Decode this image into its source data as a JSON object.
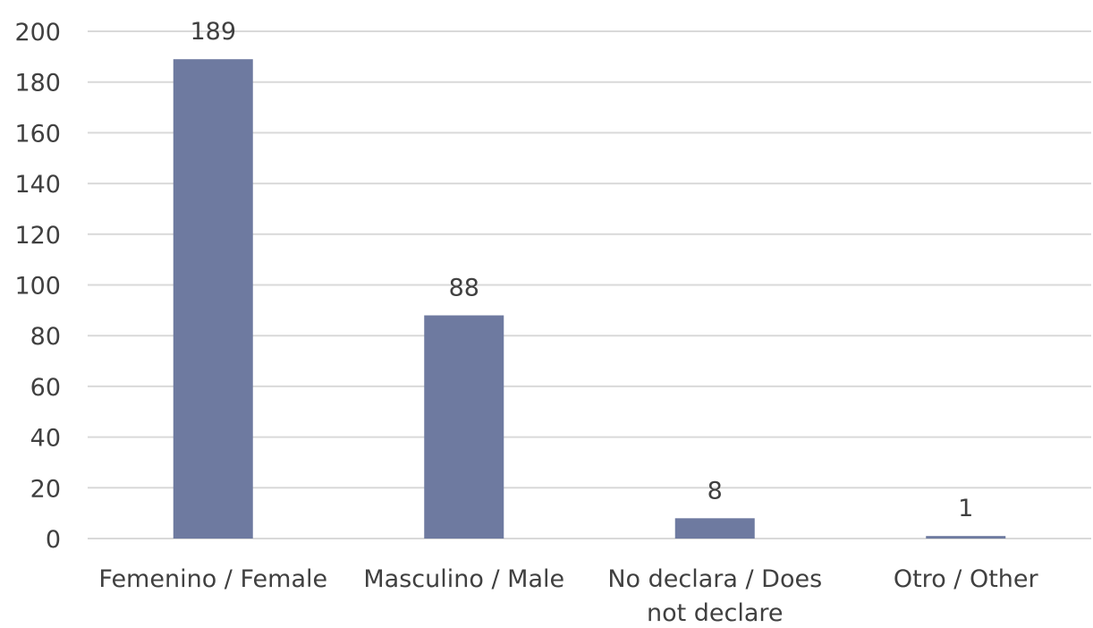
{
  "chart_data": {
    "type": "bar",
    "categories": [
      "Femenino / Female",
      "Masculino / Male",
      "No declara / Does not declare",
      "Otro / Other"
    ],
    "category_label_lines": [
      [
        "Femenino / Female"
      ],
      [
        "Masculino / Male"
      ],
      [
        "No declara / Does",
        "not declare"
      ],
      [
        "Otro / Other"
      ]
    ],
    "values": [
      189,
      88,
      8,
      1
    ],
    "data_labels": [
      "189",
      "88",
      "8",
      "1"
    ],
    "title": "",
    "xlabel": "",
    "ylabel": "",
    "ylim": [
      0,
      200
    ],
    "yticks": [
      0,
      20,
      40,
      60,
      80,
      100,
      120,
      140,
      160,
      180,
      200
    ],
    "grid": true,
    "legend": "none",
    "colors": {
      "bar": "#6e7aa0",
      "grid": "#d9d9d9",
      "text": "#404040"
    }
  }
}
